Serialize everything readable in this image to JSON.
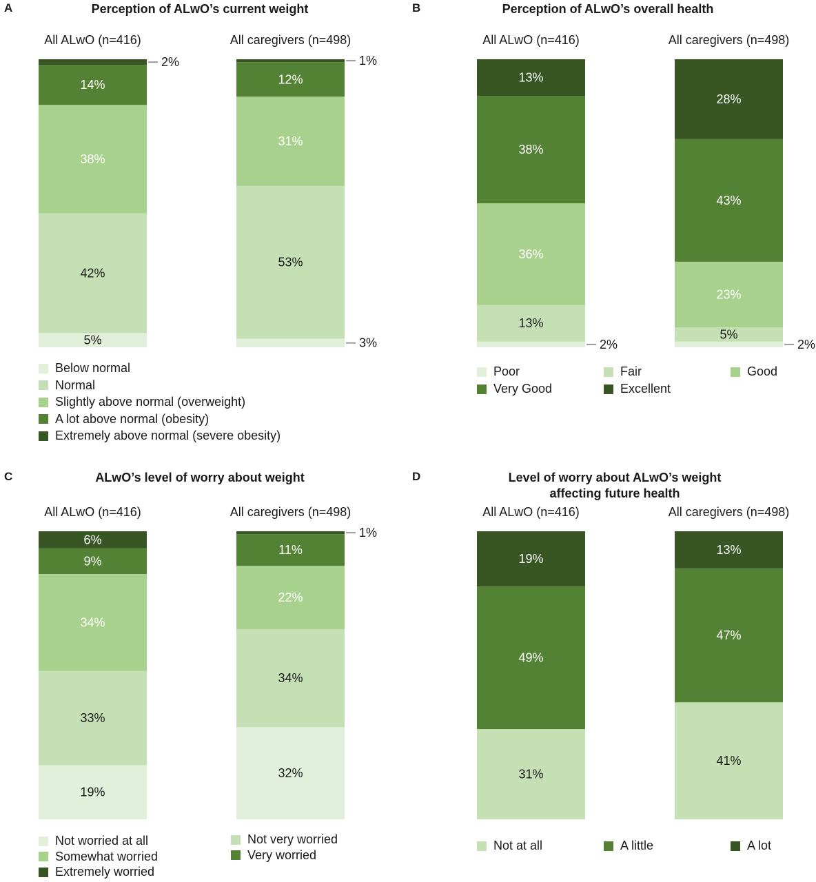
{
  "colors": {
    "lightest": "#e2efda",
    "light": "#c5e0b4",
    "mid": "#a9d18e",
    "dark": "#548235",
    "darkest": "#375623"
  },
  "chart_data": [
    {
      "type": "bar",
      "stacked": true,
      "letter": "A",
      "title": "Perception of ALwO’s current weight",
      "categories": [
        "All ALwO (n=416)",
        "All caregivers (n=498)"
      ],
      "series": [
        {
          "name": "Below normal",
          "values": [
            5,
            3
          ],
          "color": "#e2efda"
        },
        {
          "name": "Normal",
          "values": [
            42,
            53
          ],
          "color": "#c5e0b4"
        },
        {
          "name": "Slightly above normal (overweight)",
          "values": [
            38,
            31
          ],
          "color": "#a9d18e"
        },
        {
          "name": "A lot above normal (obesity)",
          "values": [
            14,
            12
          ],
          "color": "#548235"
        },
        {
          "name": "Extremely above normal (severe obesity)",
          "values": [
            2,
            1
          ],
          "color": "#375623"
        }
      ],
      "unit": "%"
    },
    {
      "type": "bar",
      "stacked": true,
      "letter": "B",
      "title": "Perception of ALwO’s overall health",
      "categories": [
        "All ALwO (n=416)",
        "All caregivers (n=498)"
      ],
      "series": [
        {
          "name": "Poor",
          "values": [
            2,
            2
          ],
          "color": "#e2efda"
        },
        {
          "name": "Fair",
          "values": [
            13,
            5
          ],
          "color": "#c5e0b4"
        },
        {
          "name": "Good",
          "values": [
            36,
            23
          ],
          "color": "#a9d18e"
        },
        {
          "name": "Very Good",
          "values": [
            38,
            43
          ],
          "color": "#548235"
        },
        {
          "name": "Excellent",
          "values": [
            13,
            28
          ],
          "color": "#375623"
        }
      ],
      "unit": "%"
    },
    {
      "type": "bar",
      "stacked": true,
      "letter": "C",
      "title": "ALwO’s level of worry about weight",
      "categories": [
        "All ALwO (n=416)",
        "All caregivers (n=498)"
      ],
      "series": [
        {
          "name": "Not worried at all",
          "values": [
            19,
            32
          ],
          "color": "#e2efda"
        },
        {
          "name": "Not very worried",
          "values": [
            33,
            34
          ],
          "color": "#c5e0b4"
        },
        {
          "name": "Somewhat worried",
          "values": [
            34,
            22
          ],
          "color": "#a9d18e"
        },
        {
          "name": "Very worried",
          "values": [
            9,
            11
          ],
          "color": "#548235"
        },
        {
          "name": "Extremely worried",
          "values": [
            6,
            1
          ],
          "color": "#375623"
        }
      ],
      "unit": "%"
    },
    {
      "type": "bar",
      "stacked": true,
      "letter": "D",
      "title": "Level of worry about ALwO’s weight affecting future health",
      "categories": [
        "All ALwO (n=416)",
        "All caregivers (n=498)"
      ],
      "series": [
        {
          "name": "Not at all",
          "values": [
            31,
            41
          ],
          "color": "#c5e0b4"
        },
        {
          "name": "A little",
          "values": [
            49,
            47
          ],
          "color": "#548235"
        },
        {
          "name": "A lot",
          "values": [
            19,
            13
          ],
          "color": "#375623"
        }
      ],
      "unit": "%"
    }
  ]
}
